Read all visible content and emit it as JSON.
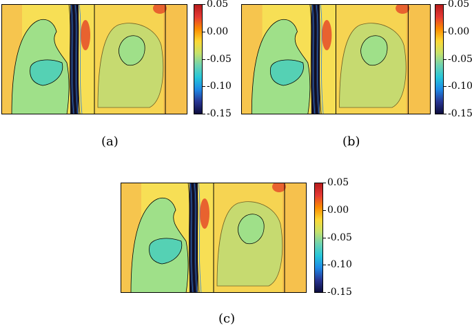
{
  "panels": [
    {
      "label": "(a)"
    },
    {
      "label": "(b)"
    },
    {
      "label": "(c)"
    }
  ],
  "colorbar": {
    "ticks": [
      "0.05",
      "0.00",
      "-0.05",
      "-0.10",
      "-0.15"
    ],
    "colors": [
      "#b71c1c",
      "#e53935",
      "#fb8c00",
      "#fdd835",
      "#c6e26b",
      "#6fd3b0",
      "#26c6da",
      "#1e88e5",
      "#283593",
      "#0d0d3d"
    ]
  },
  "field_colors": {
    "background": "#f7df55",
    "warm": "#f5b44a",
    "hot": "#e8622f",
    "cool": "#9fe089",
    "cold": "#55d1b4",
    "core": "#1a1a3a"
  }
}
